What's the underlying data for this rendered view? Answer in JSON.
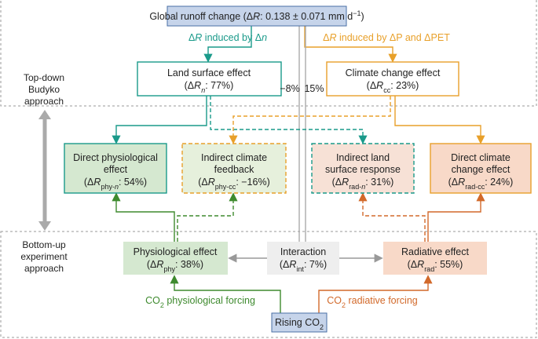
{
  "header": {
    "title": [
      "Global runoff change (Δ",
      "R",
      ": 0.138 ± 0.071 mm d",
      "−1",
      ")"
    ]
  },
  "edge_labels": {
    "by_n": [
      "Δ",
      "R",
      " induced by Δ",
      "n"
    ],
    "by_p": [
      "Δ",
      "R",
      " induced by ΔP and ΔPET"
    ]
  },
  "approaches": {
    "top": [
      "Top-down",
      "Budyko",
      "approach"
    ],
    "bottom": [
      "Bottom-up",
      "experiment",
      "approach"
    ]
  },
  "nodes": {
    "land": {
      "title": "Land surface effect",
      "value": [
        "(Δ",
        "R",
        "n",
        ": 77%)"
      ]
    },
    "climate": {
      "title": "Climate change effect",
      "value": [
        "(Δ",
        "R",
        "cc",
        ": 23%)"
      ]
    },
    "direct_phys": {
      "title": [
        "Direct physiological",
        "effect"
      ],
      "value": [
        "(Δ",
        "R",
        "phy-",
        "n",
        ": 54%)"
      ]
    },
    "indirect_climate": {
      "title": [
        "Indirect climate",
        "feedback"
      ],
      "value": [
        "(Δ",
        "R",
        "phy-cc",
        ": −16%)"
      ]
    },
    "indirect_land": {
      "title": [
        "Indirect land",
        "surface response"
      ],
      "value": [
        "(Δ",
        "R",
        "rad-",
        "n",
        ": 31%)"
      ]
    },
    "direct_climate": {
      "title": [
        "Direct climate",
        "change effect"
      ],
      "value": [
        "(Δ",
        "R",
        "rad-cc",
        ": 24%)"
      ]
    },
    "physiological": {
      "title": "Physiological effect",
      "value": [
        "(Δ",
        "R",
        "phy",
        ": 38%)"
      ]
    },
    "interaction": {
      "title": "Interaction",
      "value": [
        "(Δ",
        "R",
        "int",
        ": 7%)"
      ]
    },
    "radiative": {
      "title": "Radiative effect",
      "value": [
        "(Δ",
        "R",
        "rad",
        ": 55%)"
      ]
    },
    "rising": {
      "title": [
        "Rising CO",
        "2"
      ]
    }
  },
  "shares": {
    "negative": "−8%",
    "positive": "15%"
  },
  "forcings": {
    "physiological": [
      "CO",
      "2",
      " physiological forcing"
    ],
    "radiative": [
      "CO",
      "2",
      " radiative forcing"
    ]
  }
}
